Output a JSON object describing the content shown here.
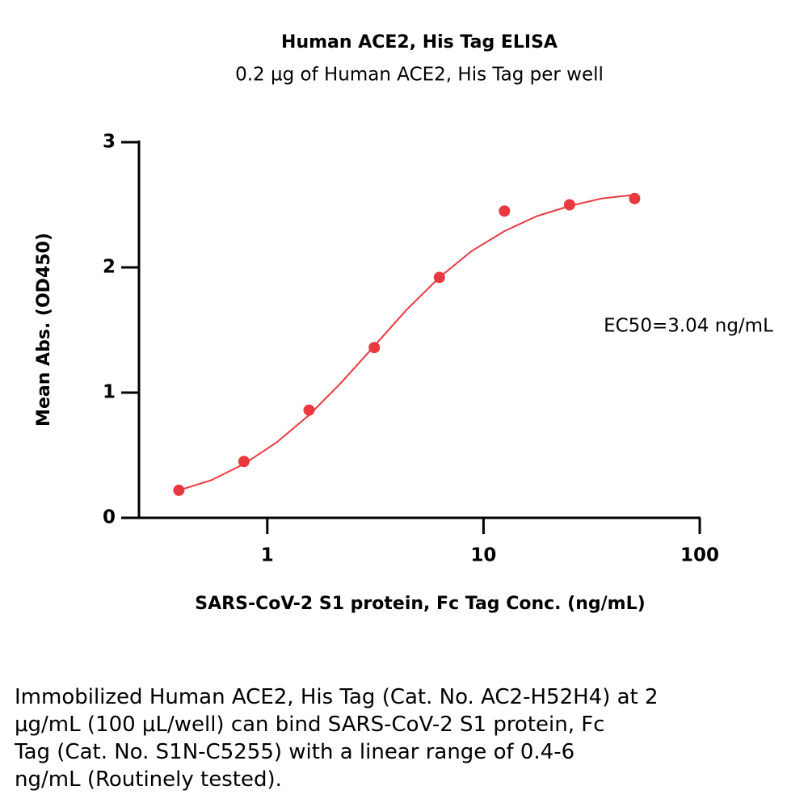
{
  "chart_data": {
    "type": "scatter",
    "title": "Human ACE2, His Tag ELISA",
    "subtitle": "0.2 µg of Human ACE2, His Tag per well",
    "x_label": "SARS-CoV-2 S1 protein, Fc Tag Conc. (ng/mL)",
    "y_label": "Mean Abs. (OD450)",
    "annotation": "EC50=3.04 ng/mL",
    "x_scale": "log",
    "xlim": [
      0.255,
      100
    ],
    "xticks": [
      1,
      10,
      100
    ],
    "ylim": [
      0,
      3
    ],
    "yticks": [
      0,
      1,
      2,
      3
    ],
    "grid": false,
    "series": [
      {
        "style": "points",
        "color": "#e8393f",
        "x": [
          0.39,
          0.78,
          1.56,
          3.125,
          6.25,
          12.5,
          25,
          50
        ],
        "values": [
          0.22,
          0.45,
          0.86,
          1.36,
          1.92,
          2.45,
          2.5,
          2.55
        ]
      },
      {
        "style": "line",
        "color": "#e8393f",
        "x": [
          0.39,
          0.55,
          0.78,
          1.1,
          1.56,
          2.2,
          3.04,
          4.4,
          6.25,
          8.8,
          12.5,
          17.7,
          25,
          35,
          50
        ],
        "values": [
          0.22,
          0.3,
          0.43,
          0.6,
          0.82,
          1.08,
          1.35,
          1.66,
          1.92,
          2.13,
          2.29,
          2.41,
          2.49,
          2.55,
          2.58
        ]
      }
    ]
  },
  "caption": [
    "Immobilized Human ACE2, His Tag (Cat. No. AC2-H52H4) at 2",
    "μg/mL (100 μL/well) can bind SARS-CoV-2 S1 protein, Fc",
    "Tag (Cat. No. S1N-C5255) with a linear range of 0.4-6",
    "ng/mL (Routinely tested)."
  ]
}
